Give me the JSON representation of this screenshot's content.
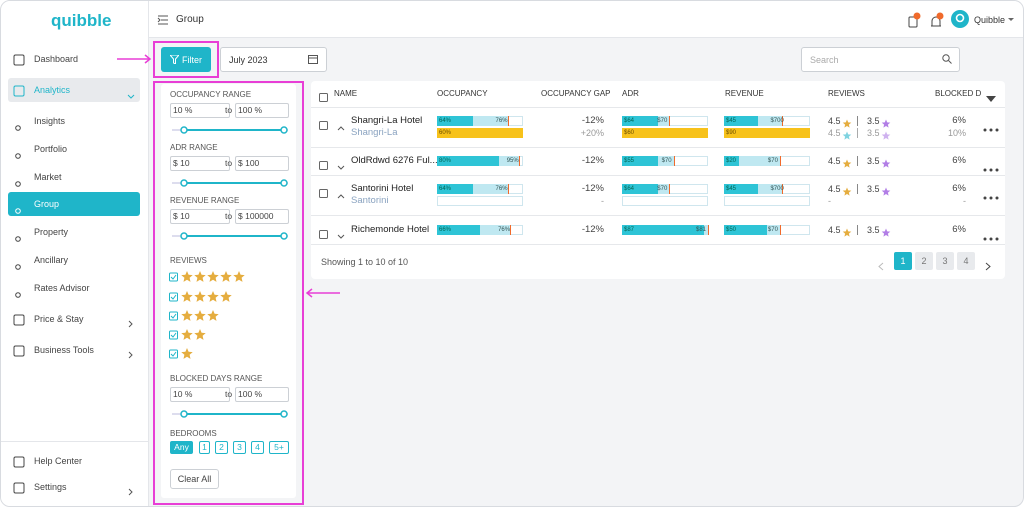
{
  "logo": "quibble",
  "sidebar": {
    "items": [
      "Dashboard",
      "Analytics",
      "Insights",
      "Portfolio",
      "Market",
      "Group",
      "Property",
      "Ancillary",
      "Rates Advisor",
      "Price & Stay",
      "Business Tools"
    ],
    "footer": [
      "Help Center",
      "Settings"
    ]
  },
  "header": {
    "title": "Group",
    "user": "Quibble"
  },
  "toolbar": {
    "filter": "Filter",
    "date": "July 2023",
    "search_placeholder": "Search"
  },
  "filters": {
    "occupancy": {
      "label": "OCCUPANCY RANGE",
      "min": "10 %",
      "to": "to",
      "max": "100 %"
    },
    "adr": {
      "label": "ADR RANGE",
      "min": "$ 10",
      "to": "to",
      "max": "$ 100"
    },
    "revenue": {
      "label": "REVENUE RANGE",
      "min": "$ 10",
      "to": "to",
      "max": "$ 100000"
    },
    "reviews": {
      "label": "REVIEWS"
    },
    "blocked": {
      "label": "BLOCKED DAYS RANGE",
      "min": "10 %",
      "to": "to",
      "max": "100 %"
    },
    "bedrooms": {
      "label": "BEDROOMS",
      "options": [
        "Any",
        "1",
        "2",
        "3",
        "4",
        "5+"
      ]
    },
    "clear": "Clear All"
  },
  "table": {
    "columns": [
      "NAME",
      "OCCUPANCY",
      "OCCUPANCY GAP",
      "ADR",
      "REVENUE",
      "REVIEWS",
      "BLOCKED D"
    ],
    "rows": [
      {
        "name": "Shangri-La Hotel",
        "sub": "Shangri-La",
        "occupancy": [
          "64%",
          "76%"
        ],
        "occupancy_sub": [
          "60%"
        ],
        "gap": "-12%",
        "gap_sub": "+20%",
        "adr": [
          "$64",
          "$70"
        ],
        "adr_sub": [
          "$60"
        ],
        "revenue": [
          "$45",
          "$700"
        ],
        "revenue_sub": [
          "$90"
        ],
        "reviews": [
          "4.5",
          "3.5"
        ],
        "reviews_sub": [
          "4.5",
          "3.5"
        ],
        "blocked": "6%",
        "blocked_sub": "10%"
      },
      {
        "name": "OldRdwd 6276 Ful...",
        "occupancy": [
          "80%",
          "95%"
        ],
        "gap": "-12%",
        "adr": [
          "$55",
          "$70"
        ],
        "revenue": [
          "$20",
          "$70"
        ],
        "reviews": [
          "4.5",
          "3.5"
        ],
        "blocked": "6%"
      },
      {
        "name": "Santorini Hotel",
        "sub": "Santorini",
        "occupancy": [
          "64%",
          "76%"
        ],
        "occupancy_sub": [],
        "gap": "-12%",
        "gap_sub": "-",
        "adr": [
          "$64",
          "$70"
        ],
        "adr_sub": [],
        "revenue": [
          "$45",
          "$700"
        ],
        "revenue_sub": [],
        "reviews": [
          "4.5",
          "3.5"
        ],
        "reviews_sub": [
          "-"
        ],
        "blocked": "6%",
        "blocked_sub": "-"
      },
      {
        "name": "Richemonde Hotel",
        "occupancy": [
          "66%",
          "76%"
        ],
        "gap": "-12%",
        "adr": [
          "$87",
          "$81"
        ],
        "revenue": [
          "$50",
          "$70"
        ],
        "reviews": [
          "4.5",
          "3.5"
        ],
        "blocked": "6%"
      }
    ],
    "footer": "Showing 1 to 10 of 10",
    "pages": [
      "1",
      "2",
      "3",
      "4"
    ]
  }
}
